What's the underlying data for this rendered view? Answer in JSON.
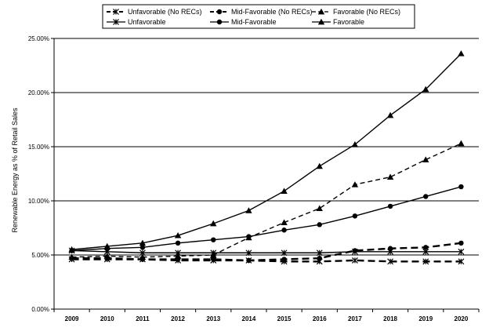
{
  "chart_data": {
    "type": "line",
    "title": "",
    "xlabel": "",
    "ylabel": "Renewable Energy as % of Retail Sales",
    "ylim": [
      0,
      25
    ],
    "yticks": [
      "0.00%",
      "5.00%",
      "10.00%",
      "15.00%",
      "20.00%",
      "25.00%"
    ],
    "categories": [
      "2009",
      "2010",
      "2011",
      "2012",
      "2013",
      "2014",
      "2015",
      "2016",
      "2017",
      "2018",
      "2019",
      "2020"
    ],
    "grid": "horizontal",
    "legend_position": "top",
    "series": [
      {
        "name": "Unfavorable (No RECs)",
        "marker": "asterisk",
        "dash": "dashed",
        "values": [
          4.6,
          4.6,
          4.6,
          4.5,
          4.5,
          4.5,
          4.4,
          4.4,
          4.5,
          4.4,
          4.4,
          4.4
        ]
      },
      {
        "name": "Mid-Favorable (No RECs)",
        "marker": "circle",
        "dash": "dashed",
        "values": [
          4.7,
          4.7,
          4.6,
          4.6,
          4.6,
          4.5,
          4.6,
          4.7,
          5.4,
          5.6,
          5.7,
          6.1
        ]
      },
      {
        "name": "Favorable (No RECs)",
        "marker": "triangle",
        "dash": "dashed",
        "values": [
          4.8,
          4.9,
          4.8,
          4.9,
          5.0,
          6.6,
          8.0,
          9.3,
          11.5,
          12.2,
          13.8,
          15.3
        ]
      },
      {
        "name": "Unfavorable",
        "marker": "asterisk",
        "dash": "solid",
        "values": [
          5.4,
          5.3,
          5.2,
          5.2,
          5.2,
          5.2,
          5.2,
          5.2,
          5.3,
          5.3,
          5.3,
          5.3
        ]
      },
      {
        "name": "Mid-Favorable",
        "marker": "circle",
        "dash": "solid",
        "values": [
          5.4,
          5.6,
          5.7,
          6.1,
          6.4,
          6.7,
          7.3,
          7.8,
          8.6,
          9.5,
          10.4,
          11.3
        ]
      },
      {
        "name": "Favorable",
        "marker": "triangle",
        "dash": "solid",
        "values": [
          5.5,
          5.8,
          6.1,
          6.8,
          7.9,
          9.1,
          10.9,
          13.2,
          15.2,
          17.9,
          20.3,
          23.6
        ]
      }
    ]
  }
}
